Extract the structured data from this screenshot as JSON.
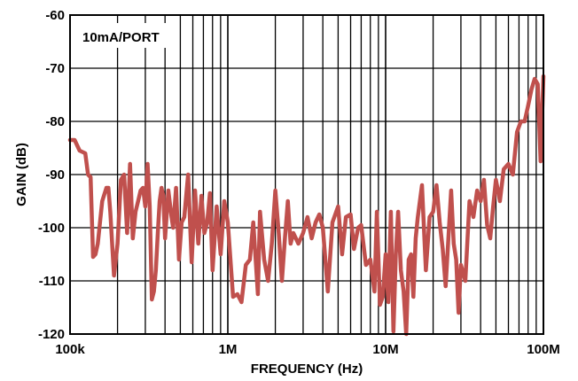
{
  "chart_data": {
    "type": "line",
    "title": "",
    "annotation": "10mA/PORT",
    "xlabel": "FREQUENCY (Hz)",
    "ylabel": "GAIN (dB)",
    "x_scale": "log",
    "xlim": [
      100000,
      100000000
    ],
    "ylim": [
      -120,
      -60
    ],
    "x_ticks": [
      {
        "value": 100000,
        "label": "100k"
      },
      {
        "value": 1000000,
        "label": "1M"
      },
      {
        "value": 10000000,
        "label": "10M"
      },
      {
        "value": 100000000,
        "label": "100M"
      }
    ],
    "y_ticks": [
      {
        "value": -60,
        "label": "-60"
      },
      {
        "value": -70,
        "label": "-70"
      },
      {
        "value": -80,
        "label": "-80"
      },
      {
        "value": -90,
        "label": "-90"
      },
      {
        "value": -100,
        "label": "-100"
      },
      {
        "value": -110,
        "label": "-110"
      },
      {
        "value": -120,
        "label": "-120"
      }
    ],
    "grid": true,
    "series_color": "#c0504d",
    "series": [
      {
        "x": [
          100000,
          107000,
          115000,
          125000,
          130000,
          135000,
          140000,
          145000,
          150000,
          160000,
          170000,
          175000,
          180000,
          190000,
          200000,
          210000,
          220000,
          230000,
          240000,
          250000,
          260000,
          270000,
          280000,
          290000,
          300000,
          310000,
          320000,
          330000,
          340000,
          350000,
          360000,
          370000,
          380000,
          390000,
          400000,
          420000,
          440000,
          450000,
          470000,
          490000,
          510000,
          530000,
          560000,
          590000,
          620000,
          650000,
          680000,
          710000,
          740000,
          770000,
          800000,
          850000,
          900000,
          950000,
          1000000,
          1080000,
          1150000,
          1220000,
          1300000,
          1380000,
          1450000,
          1550000,
          1600000,
          1700000,
          1800000,
          1900000,
          2000000,
          2100000,
          2200000,
          2300000,
          2400000,
          2500000,
          2600000,
          2800000,
          3000000,
          3200000,
          3400000,
          3600000,
          3800000,
          4000000,
          4300000,
          4600000,
          5000000,
          5300000,
          5600000,
          6000000,
          6300000,
          6700000,
          7000000,
          7500000,
          8000000,
          8500000,
          8800000,
          9200000,
          9600000,
          10000000,
          10400000,
          10800000,
          11200000,
          11600000,
          12000000,
          12500000,
          13000000,
          13500000,
          14000000,
          14500000,
          15000000,
          15500000,
          16000000,
          17000000,
          18000000,
          19000000,
          20000000,
          21000000,
          22000000,
          23000000,
          24000000,
          25000000,
          26000000,
          27000000,
          28000000,
          29000000,
          30000000,
          32000000,
          34000000,
          36000000,
          38000000,
          40000000,
          42000000,
          44000000,
          46000000,
          48000000,
          50000000,
          53000000,
          56000000,
          60000000,
          64000000,
          68000000,
          72000000,
          76000000,
          80000000,
          84000000,
          88000000,
          92000000,
          96000000,
          100000000
        ],
        "y": [
          -83.5,
          -83.5,
          -85.5,
          -86,
          -90,
          -90.5,
          -105.5,
          -105,
          -103,
          -95,
          -92.5,
          -92.5,
          -97,
          -109,
          -103,
          -91,
          -90,
          -101,
          -88,
          -102,
          -97,
          -95,
          -93,
          -92.5,
          -96,
          -88,
          -96,
          -113.5,
          -112,
          -108,
          -101,
          -95,
          -92.5,
          -94,
          -102,
          -93,
          -98,
          -100,
          -92.5,
          -106,
          -99,
          -98,
          -90,
          -106.5,
          -93,
          -103,
          -94,
          -101,
          -99,
          -93.5,
          -108,
          -96,
          -105,
          -95,
          -99,
          -113,
          -112.5,
          -114,
          -107,
          -106,
          -99,
          -112.5,
          -97,
          -106,
          -110,
          -103,
          -93,
          -101,
          -110,
          -102,
          -95,
          -103,
          -101,
          -103,
          -101,
          -98,
          -102,
          -99,
          -97.5,
          -100,
          -112,
          -99,
          -96,
          -105,
          -98,
          -97.5,
          -104,
          -100,
          -99.5,
          -107,
          -106,
          -112,
          -97,
          -114.5,
          -113,
          -105,
          -114,
          -97,
          -119.5,
          -105,
          -97,
          -108,
          -112,
          -120,
          -106,
          -105,
          -113,
          -102,
          -98,
          -92,
          -108,
          -98,
          -97,
          -92,
          -99,
          -104,
          -111,
          -102,
          -93,
          -103,
          -106,
          -116,
          -107,
          -110,
          -95,
          -98,
          -93,
          -95,
          -91,
          -99.5,
          -102,
          -96,
          -91,
          -95,
          -89,
          -88,
          -90,
          -82,
          -80,
          -80,
          -77,
          -74,
          -72,
          -73,
          -87.5,
          -71.5
        ]
      }
    ]
  }
}
